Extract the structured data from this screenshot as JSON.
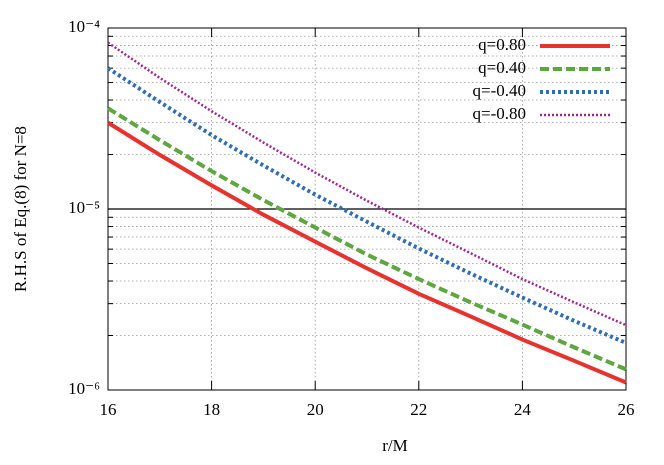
{
  "chart_data": {
    "type": "line",
    "x_label": "r/M",
    "y_label": "R.H.S of Eq.(8) for N=8",
    "x": [
      16,
      17,
      18,
      19,
      20,
      21,
      22,
      23,
      24,
      25,
      26
    ],
    "series": [
      {
        "name": "q=0.80",
        "color": "#e8322e",
        "dash": "solid",
        "values": [
          3e-05,
          1.99e-05,
          1.35e-05,
          9.3e-06,
          6.6e-06,
          4.7e-06,
          3.4e-06,
          2.55e-06,
          1.9e-06,
          1.45e-06,
          1.1e-06
        ]
      },
      {
        "name": "q=0.40",
        "color": "#5ea63f",
        "dash": "dashed",
        "values": [
          3.6e-05,
          2.4e-05,
          1.62e-05,
          1.12e-05,
          7.9e-06,
          5.6e-06,
          4.1e-06,
          3.05e-06,
          2.3e-06,
          1.72e-06,
          1.3e-06
        ]
      },
      {
        "name": "q=-0.40",
        "color": "#2f6db5",
        "dash": "dotted",
        "values": [
          6e-05,
          3.9e-05,
          2.56e-05,
          1.74e-05,
          1.2e-05,
          8.5e-06,
          6.05e-06,
          4.4e-06,
          3.24e-06,
          2.41e-06,
          1.82e-06
        ]
      },
      {
        "name": "q=-0.80",
        "color": "#a1278e",
        "dash": "fine-dotted",
        "values": [
          8.3e-05,
          5.3e-05,
          3.47e-05,
          2.33e-05,
          1.59e-05,
          1.11e-05,
          7.9e-06,
          5.7e-06,
          4.1e-06,
          3.05e-06,
          2.28e-06
        ]
      }
    ],
    "xlim": [
      16,
      26
    ],
    "xticks": [
      16,
      18,
      20,
      22,
      24,
      26
    ],
    "ylim": [
      1e-06,
      0.0001
    ],
    "yscale": "log",
    "yticks": [
      {
        "value": 1e-06,
        "label": "10⁻⁶"
      },
      {
        "value": 1e-05,
        "label": "10⁻⁵"
      },
      {
        "value": 0.0001,
        "label": "10⁻⁴"
      }
    ],
    "yminorticks": [
      2e-06,
      3e-06,
      4e-06,
      5e-06,
      6e-06,
      7e-06,
      8e-06,
      9e-06,
      2e-05,
      3e-05,
      4e-05,
      5e-05,
      6e-05,
      7e-05,
      8e-05,
      9e-05
    ],
    "hline": 1e-05,
    "grid": true,
    "legend": "top-right"
  }
}
